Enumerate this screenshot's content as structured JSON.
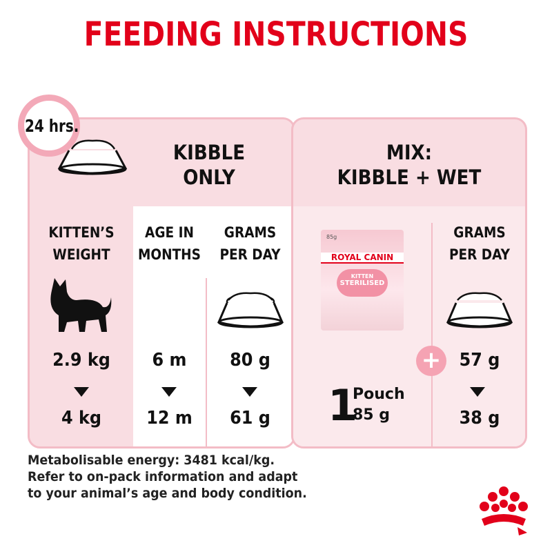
{
  "title": "FEEDING INSTRUCTIONS",
  "clock_label": "24 hrs.",
  "kibble": {
    "heading_line1": "KIBBLE",
    "heading_line2": "ONLY",
    "columns": [
      {
        "line1": "KITTEN’S",
        "line2": "WEIGHT",
        "from": "2.9 kg",
        "to": "4 kg"
      },
      {
        "line1": "AGE IN",
        "line2": "MONTHS",
        "from": "6 m",
        "to": "12 m"
      },
      {
        "line1": "GRAMS",
        "line2": "PER DAY",
        "from": "80 g",
        "to": "61 g"
      }
    ]
  },
  "mix": {
    "heading_line1": "MIX:",
    "heading_line2": "KIBBLE + WET",
    "pouch": {
      "count": "1",
      "unit": "Pouch",
      "weight": "85 g",
      "pack_weight": "85g",
      "brand": "ROYAL CANIN",
      "product_line1": "KITTEN",
      "product_line2": "STERILISED"
    },
    "grams": {
      "line1": "GRAMS",
      "line2": "PER DAY",
      "from": "57 g",
      "to": "38 g"
    },
    "plus": "+"
  },
  "note": [
    "Metabolisable energy: 3481 kcal/kg.",
    "Refer to on-pack information and adapt",
    "to your animal’s age and body condition."
  ],
  "colors": {
    "brand_red": "#e2001a",
    "panel_pink": "#f9dde2",
    "border_pink": "#f3bcc6"
  }
}
